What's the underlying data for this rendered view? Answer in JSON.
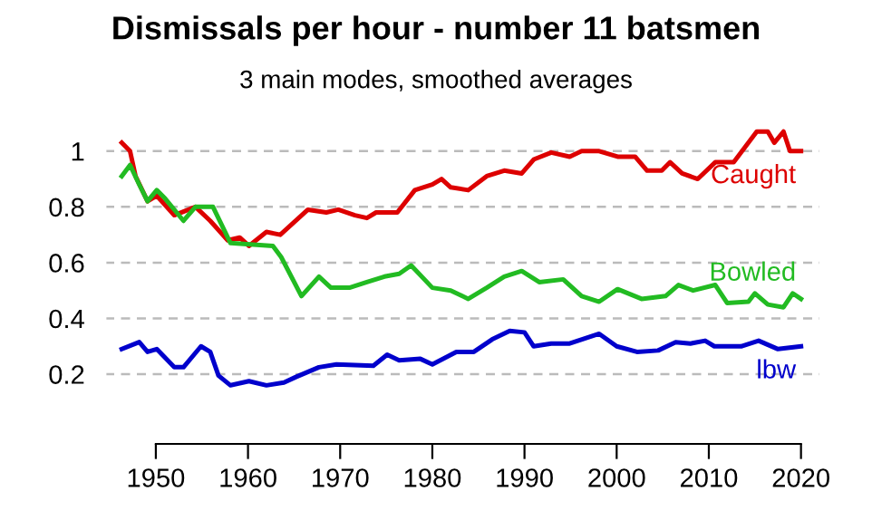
{
  "chart_data": {
    "type": "line",
    "title": "Dismissals per hour - number 11 batsmen",
    "subtitle": "3 main modes, smoothed averages",
    "series": [
      {
        "name": "Caught",
        "color": "#dd0000",
        "x": [
          1946.3,
          1947.2,
          1947.8,
          1949.1,
          1950.1,
          1952,
          1954.3,
          1955.9,
          1957.8,
          1959.1,
          1960.1,
          1962,
          1963.5,
          1966.5,
          1968.5,
          1969.8,
          1971.6,
          1972.9,
          1973.9,
          1976.2,
          1978.1,
          1980,
          1981,
          1982,
          1983.9,
          1985.9,
          1987.8,
          1989.7,
          1991,
          1992.9,
          1994.9,
          1996.2,
          1998.1,
          2000.1,
          2002,
          2003.3,
          2004.9,
          2005.8,
          2007.1,
          2008.8,
          2010.7,
          2012.7,
          2015.2,
          2016.4,
          2017.1,
          2018.1,
          2018.8,
          2020
        ],
        "values": [
          1.03,
          1.0,
          0.91,
          0.82,
          0.84,
          0.77,
          0.8,
          0.75,
          0.68,
          0.69,
          0.66,
          0.71,
          0.7,
          0.79,
          0.78,
          0.79,
          0.77,
          0.76,
          0.78,
          0.78,
          0.86,
          0.88,
          0.9,
          0.87,
          0.86,
          0.91,
          0.93,
          0.92,
          0.97,
          0.995,
          0.98,
          1.0,
          1.0,
          0.98,
          0.98,
          0.93,
          0.93,
          0.96,
          0.92,
          0.9,
          0.96,
          0.96,
          1.07,
          1.07,
          1.03,
          1.07,
          1.0,
          1.0
        ]
      },
      {
        "name": "Bowled",
        "color": "#22bb22",
        "x": [
          1946.3,
          1947.2,
          1948.2,
          1949.1,
          1950.1,
          1951,
          1953,
          1954.3,
          1956.2,
          1958.1,
          1962.7,
          1963.6,
          1965.8,
          1967.7,
          1969,
          1971,
          1972.9,
          1974.8,
          1976.4,
          1977.7,
          1980,
          1982,
          1983.9,
          1985.9,
          1987.8,
          1989.7,
          1991.6,
          1994.2,
          1996.2,
          1998.1,
          2000.1,
          2002.7,
          2005.3,
          2006.7,
          2008.3,
          2010.7,
          2012,
          2014.3,
          2015,
          2016.4,
          2018.1,
          2019.1,
          2020
        ],
        "values": [
          0.91,
          0.95,
          0.88,
          0.82,
          0.86,
          0.83,
          0.75,
          0.8,
          0.8,
          0.67,
          0.66,
          0.62,
          0.48,
          0.55,
          0.51,
          0.51,
          0.53,
          0.55,
          0.56,
          0.59,
          0.51,
          0.5,
          0.47,
          0.51,
          0.55,
          0.57,
          0.53,
          0.54,
          0.48,
          0.46,
          0.505,
          0.47,
          0.48,
          0.52,
          0.5,
          0.52,
          0.455,
          0.46,
          0.49,
          0.45,
          0.44,
          0.49,
          0.47
        ]
      },
      {
        "name": "lbw",
        "color": "#0000cc",
        "x": [
          1946.3,
          1948.2,
          1949.1,
          1950.1,
          1952,
          1953,
          1954.9,
          1955.9,
          1956.8,
          1958.1,
          1960.1,
          1962,
          1963.9,
          1965.2,
          1967.7,
          1969.6,
          1973.6,
          1975.1,
          1976.4,
          1978.7,
          1980,
          1982.6,
          1984.5,
          1986.5,
          1988.4,
          1990,
          1991,
          1992.9,
          1994.9,
          1998.1,
          2000,
          2002.2,
          2004.5,
          2006.4,
          2008,
          2009.6,
          2010.6,
          2013.5,
          2015.4,
          2017.5,
          2020
        ],
        "values": [
          0.29,
          0.315,
          0.28,
          0.29,
          0.225,
          0.225,
          0.3,
          0.28,
          0.195,
          0.16,
          0.175,
          0.16,
          0.17,
          0.19,
          0.225,
          0.235,
          0.23,
          0.27,
          0.25,
          0.255,
          0.235,
          0.28,
          0.28,
          0.325,
          0.355,
          0.35,
          0.3,
          0.31,
          0.31,
          0.345,
          0.3,
          0.28,
          0.285,
          0.315,
          0.31,
          0.32,
          0.3,
          0.3,
          0.32,
          0.29,
          0.3
        ]
      }
    ],
    "xlim": [
      1944.5,
      2022
    ],
    "xticks": [
      1950,
      1960,
      1970,
      1980,
      1990,
      2000,
      2010,
      2020
    ],
    "ylim": [
      -0.05,
      1.1
    ],
    "yticks": [
      0.2,
      0.4,
      0.6,
      0.8,
      1
    ],
    "grid": "y",
    "line_style": "solid",
    "marker": "none",
    "legend": false
  }
}
